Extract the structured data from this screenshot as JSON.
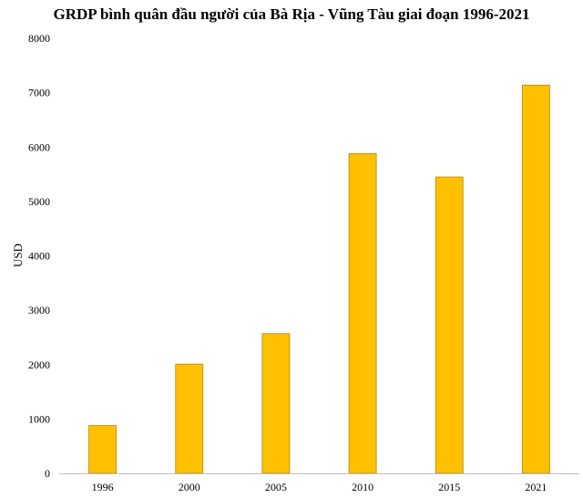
{
  "chart_data": {
    "type": "bar",
    "title": "GRDP bình quân đầu người của Bà Rịa - Vũng Tàu giai đoạn 1996-2021",
    "xlabel": "",
    "ylabel": "USD",
    "categories": [
      "1996",
      "2000",
      "2005",
      "2010",
      "2015",
      "2021"
    ],
    "values": [
      880,
      2010,
      2570,
      5880,
      5450,
      7140
    ],
    "ylim": [
      0,
      8000
    ],
    "yticks": [
      0,
      1000,
      2000,
      3000,
      4000,
      5000,
      6000,
      7000,
      8000
    ],
    "grid": false,
    "bar_color": "#FFC000",
    "bar_edge_color": "#B8860B"
  }
}
